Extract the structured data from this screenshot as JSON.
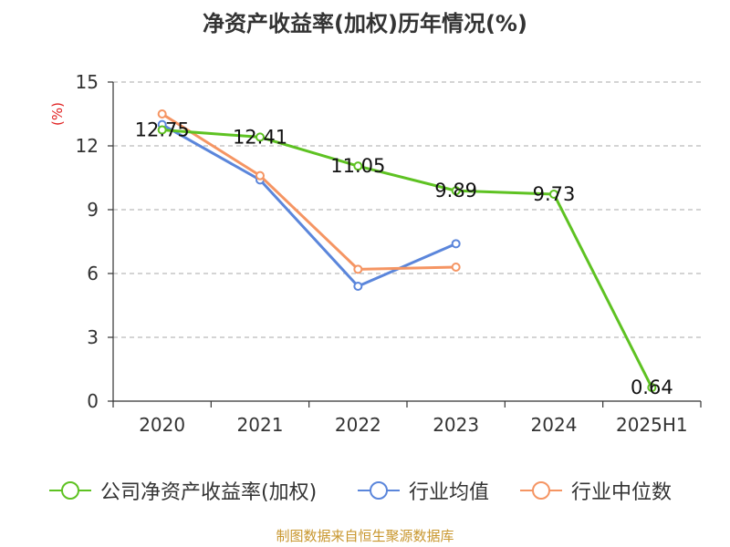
{
  "chart_data": {
    "type": "line",
    "title": "净资产收益率(加权)历年情况(%)",
    "ylabel": "(%)",
    "categories": [
      "2020",
      "2021",
      "2022",
      "2023",
      "2024",
      "2025H1"
    ],
    "ylim": [
      0,
      15
    ],
    "yticks": [
      "0",
      "3",
      "6",
      "9",
      "12",
      "15"
    ],
    "grid": true,
    "legend_position": "bottom",
    "series": [
      {
        "name": "公司净资产收益率(加权)",
        "color": "#5ec222",
        "values": [
          12.75,
          12.41,
          11.05,
          9.89,
          9.73,
          0.64
        ],
        "labels": [
          "12.75",
          "12.41",
          "11.05",
          "9.89",
          "9.73",
          "0.64"
        ]
      },
      {
        "name": "行业均值",
        "color": "#5b86db",
        "values": [
          13.0,
          10.4,
          5.4,
          7.4,
          null,
          null
        ]
      },
      {
        "name": "行业中位数",
        "color": "#f59563",
        "values": [
          13.5,
          10.6,
          6.2,
          6.3,
          null,
          null
        ]
      }
    ]
  },
  "source": "制图数据来自恒生聚源数据库"
}
